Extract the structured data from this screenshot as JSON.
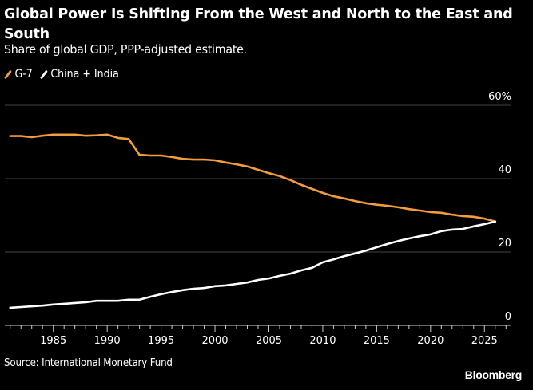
{
  "header": {
    "title": "Global Power Is Shifting From the West and North to the East and South",
    "subtitle": "Share of global GDP, PPP-adjusted estimate."
  },
  "footer": {
    "source": "Source: International Monetary Fund",
    "brand": "Bloomberg"
  },
  "colors": {
    "background": "#000000",
    "g7": "#f39c3c",
    "china_india": "#ffffff",
    "grid": "#444444",
    "axis": "#cccccc"
  },
  "chart_data": {
    "type": "line",
    "title": "Global Power Is Shifting From the West and North to the East and South",
    "subtitle": "Share of global GDP, PPP-adjusted estimate.",
    "xlabel": "",
    "ylabel": "",
    "xlim": [
      1980.5,
      2027.5
    ],
    "ylim": [
      0,
      60
    ],
    "yticks": [
      0,
      20,
      40,
      60
    ],
    "ytick_labels": [
      "0",
      "20",
      "40",
      "60%"
    ],
    "xticks": [
      1985,
      1990,
      1995,
      2000,
      2005,
      2010,
      2015,
      2020,
      2025
    ],
    "xtick_labels": [
      "1985",
      "1990",
      "1995",
      "2000",
      "2005",
      "2010",
      "2015",
      "2020",
      "2025"
    ],
    "grid": true,
    "y_axis_side": "right",
    "legend": "top-left",
    "x": [
      1981,
      1982,
      1983,
      1984,
      1985,
      1986,
      1987,
      1988,
      1989,
      1990,
      1991,
      1992,
      1993,
      1994,
      1995,
      1996,
      1997,
      1998,
      1999,
      2000,
      2001,
      2002,
      2003,
      2004,
      2005,
      2006,
      2007,
      2008,
      2009,
      2010,
      2011,
      2012,
      2013,
      2014,
      2015,
      2016,
      2017,
      2018,
      2019,
      2020,
      2021,
      2022,
      2023,
      2024,
      2025,
      2026
    ],
    "series": [
      {
        "name": "G-7",
        "color": "#f39c3c",
        "values": [
          51.6,
          51.6,
          51.3,
          51.7,
          52.0,
          52.0,
          52.0,
          51.7,
          51.8,
          52.0,
          51.1,
          50.8,
          46.5,
          46.3,
          46.3,
          45.9,
          45.4,
          45.2,
          45.2,
          45.0,
          44.4,
          43.9,
          43.3,
          42.4,
          41.5,
          40.7,
          39.6,
          38.3,
          37.2,
          36.1,
          35.2,
          34.6,
          33.9,
          33.3,
          32.9,
          32.6,
          32.2,
          31.7,
          31.3,
          30.9,
          30.7,
          30.2,
          29.8,
          29.6,
          29.1,
          28.3
        ]
      },
      {
        "name": "China + India",
        "color": "#ffffff",
        "values": [
          4.8,
          5.0,
          5.2,
          5.4,
          5.7,
          5.9,
          6.1,
          6.3,
          6.7,
          6.7,
          6.7,
          7.0,
          7.0,
          7.8,
          8.5,
          9.1,
          9.6,
          10.0,
          10.2,
          10.7,
          10.9,
          11.3,
          11.7,
          12.4,
          12.8,
          13.5,
          14.1,
          15.0,
          15.7,
          17.2,
          18.0,
          18.9,
          19.6,
          20.4,
          21.3,
          22.2,
          23.0,
          23.7,
          24.3,
          24.8,
          25.7,
          26.1,
          26.3,
          27.0,
          27.6,
          28.3
        ]
      }
    ]
  }
}
